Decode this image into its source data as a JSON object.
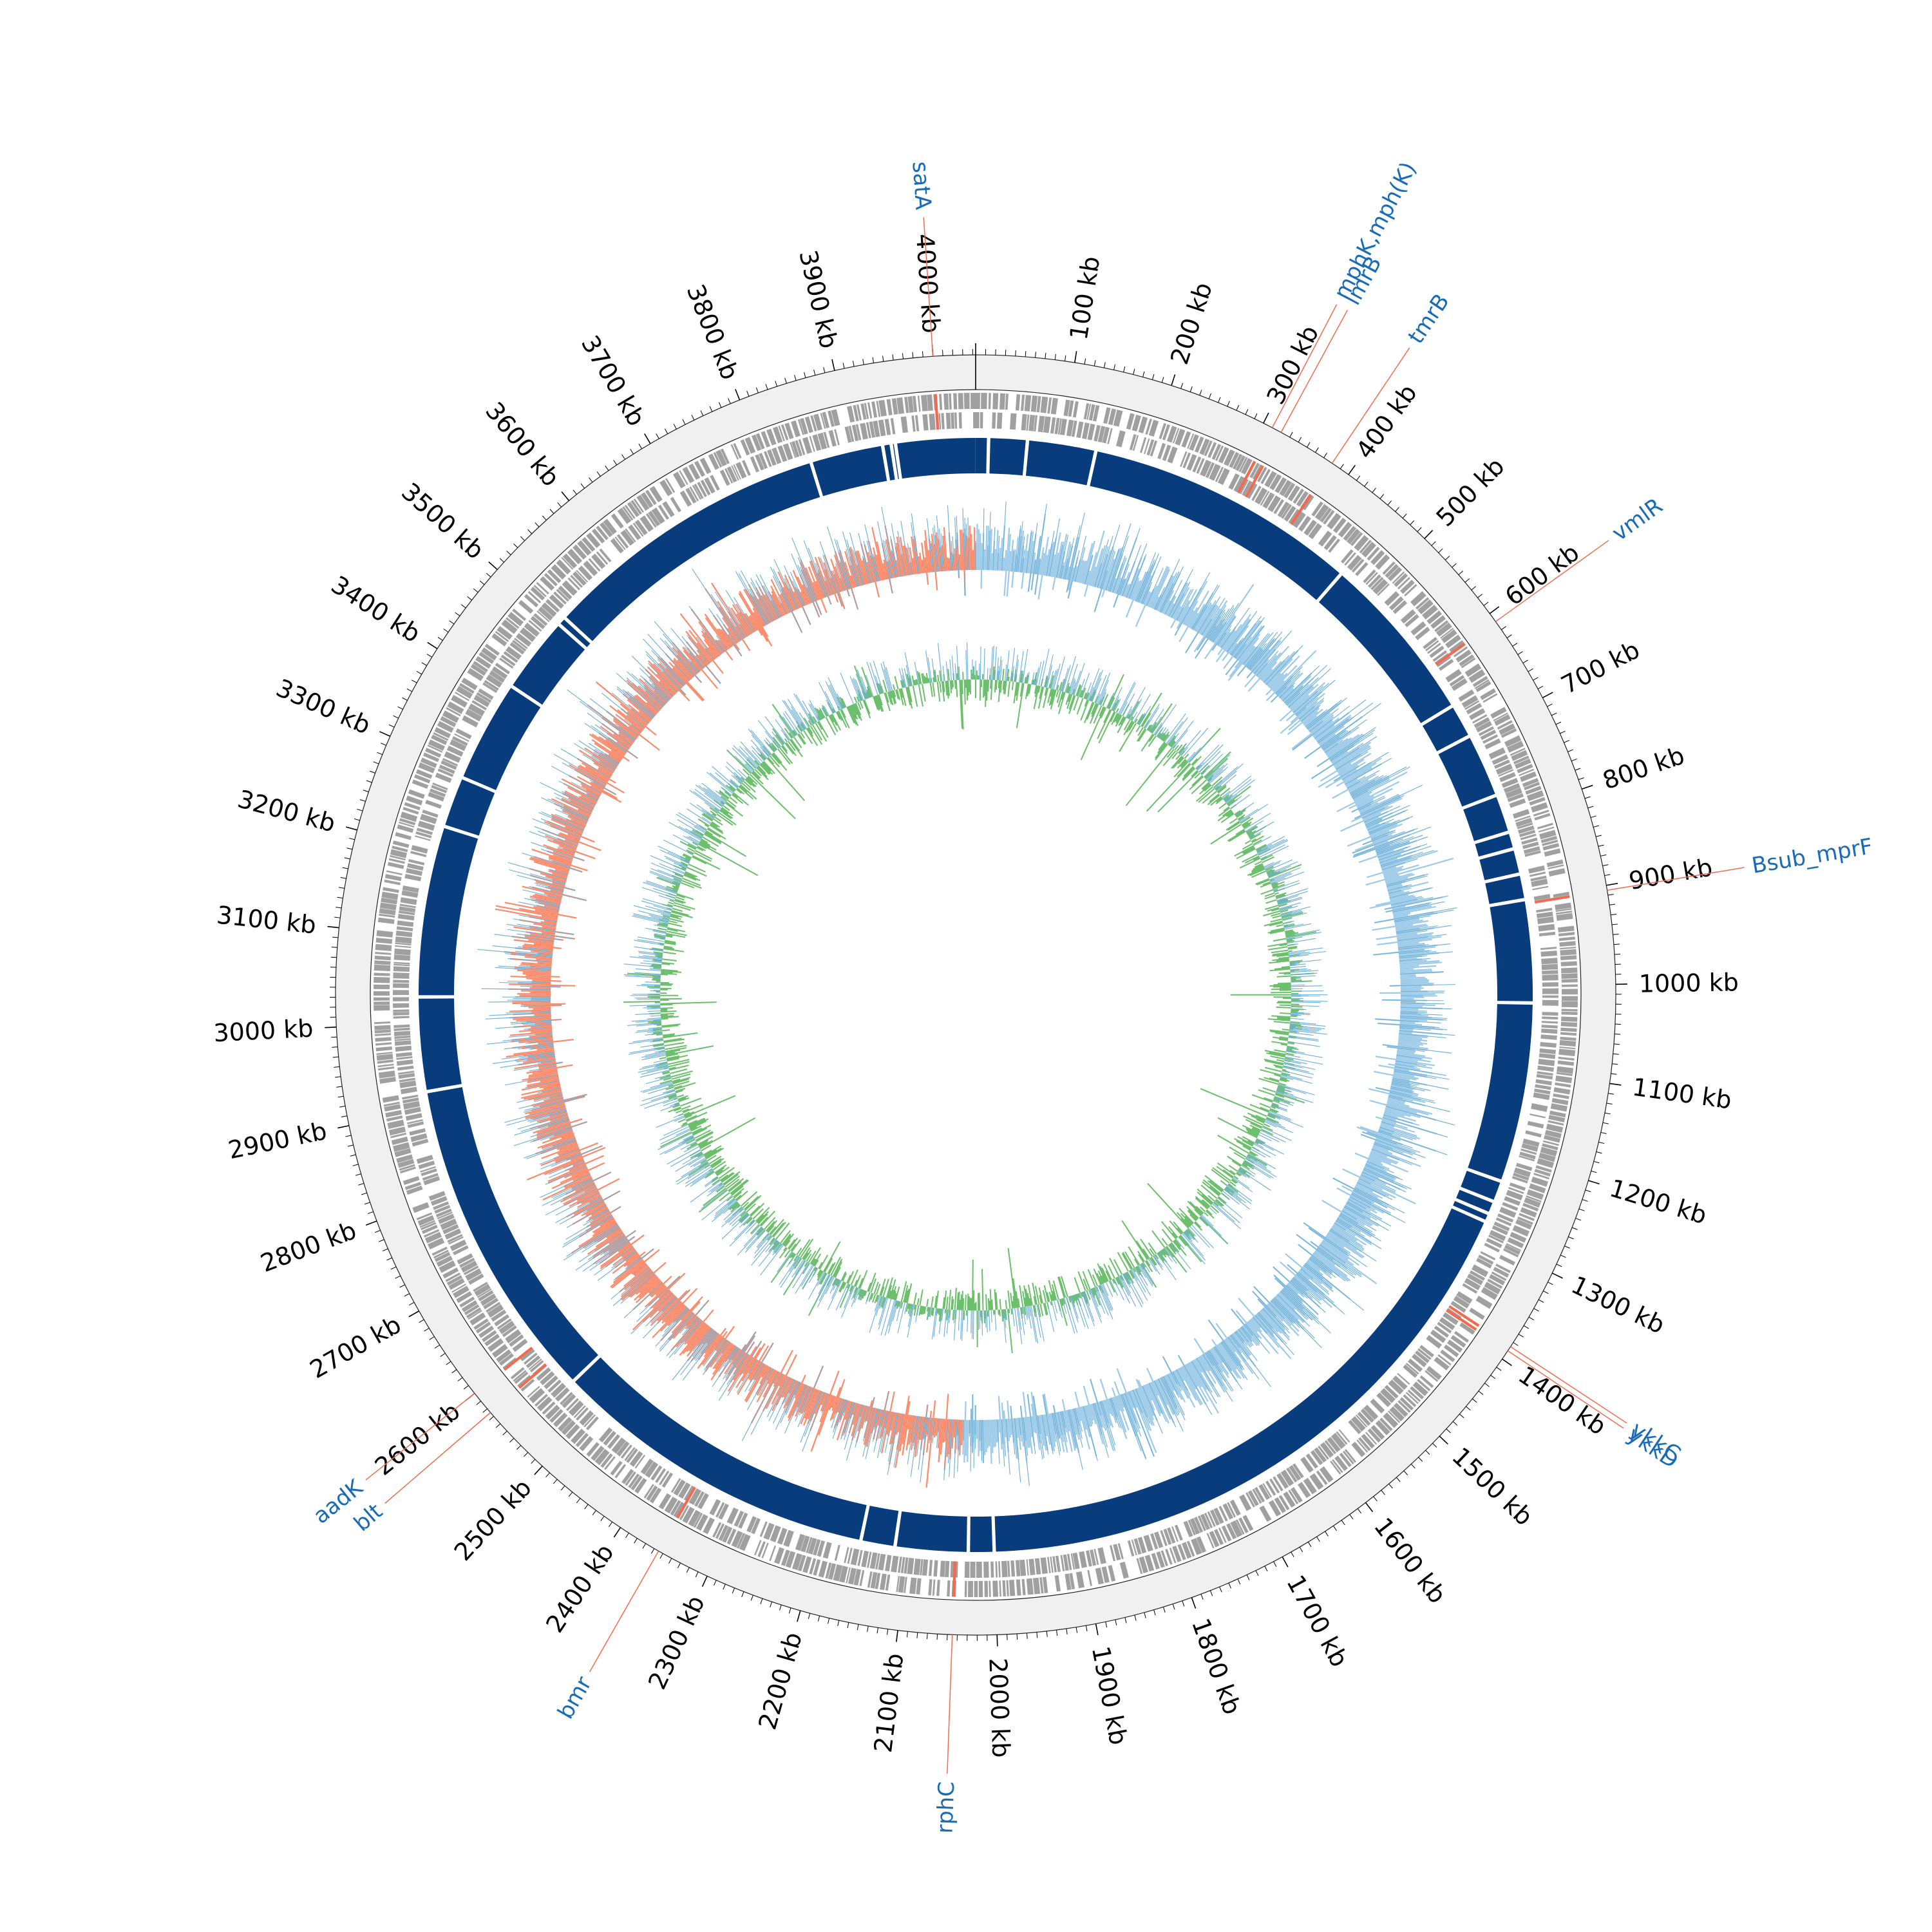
{
  "genome": {
    "length_kb": 4043,
    "tick_interval_kb": 100,
    "tick_labels": [
      "100 kb",
      "200 kb",
      "300 kb",
      "400 kb",
      "500 kb",
      "600 kb",
      "700 kb",
      "800 kb",
      "900 kb",
      "1000 kb",
      "1100 kb",
      "1200 kb",
      "1300 kb",
      "1400 kb",
      "1500 kb",
      "1600 kb",
      "1700 kb",
      "1800 kb",
      "1900 kb",
      "2000 kb",
      "2100 kb",
      "2200 kb",
      "2300 kb",
      "2400 kb",
      "2500 kb",
      "2600 kb",
      "2700 kb",
      "2800 kb",
      "2900 kb",
      "3000 kb",
      "3100 kb",
      "3200 kb",
      "3300 kb",
      "3400 kb",
      "3500 kb",
      "3600 kb",
      "3700 kb",
      "3800 kb",
      "3900 kb",
      "4000 kb"
    ]
  },
  "resistance_genes": [
    {
      "name": "satA",
      "position_kb": 4000
    },
    {
      "name": "mphK,mph(K)",
      "position_kb": 310
    },
    {
      "name": "lmrB",
      "position_kb": 320
    },
    {
      "name": "tmrB",
      "position_kb": 380
    },
    {
      "name": "vmlR",
      "position_kb": 610
    },
    {
      "name": "Bsub_mprF",
      "position_kb": 905
    },
    {
      "name": "ykkC",
      "position_kb": 1385
    },
    {
      "name": "ykkD",
      "position_kb": 1390
    },
    {
      "name": "rphC",
      "position_kb": 2045
    },
    {
      "name": "bmr",
      "position_kb": 2355
    },
    {
      "name": "aadK",
      "position_kb": 2600
    },
    {
      "name": "blt",
      "position_kb": 2575
    }
  ],
  "colors": {
    "backbone": "#f0f0f0",
    "gene": "#a0a0a0",
    "resistance_marker": "#f26b50",
    "contig": "#083c7c",
    "gc_positive": "#9ccae8",
    "gc_negative": "#fb8a6a",
    "gc_spike": "#6baed6",
    "skew_positive": "#6bbf6b",
    "skew_spike": "#6baed6",
    "label_text": "#1a6bb5",
    "leader": "#f26b50",
    "tick": "#000000"
  },
  "contig_gaps_kb": [
    15,
    60,
    140,
    460,
    660,
    700,
    775,
    820,
    840,
    870,
    900,
    1020,
    1230,
    1255,
    1270,
    1280,
    2000,
    2030,
    2115,
    2155,
    2540,
    2920,
    3030,
    3230,
    3290,
    3410,
    3500,
    3510,
    3850,
    3935,
    3945,
    3950
  ]
}
